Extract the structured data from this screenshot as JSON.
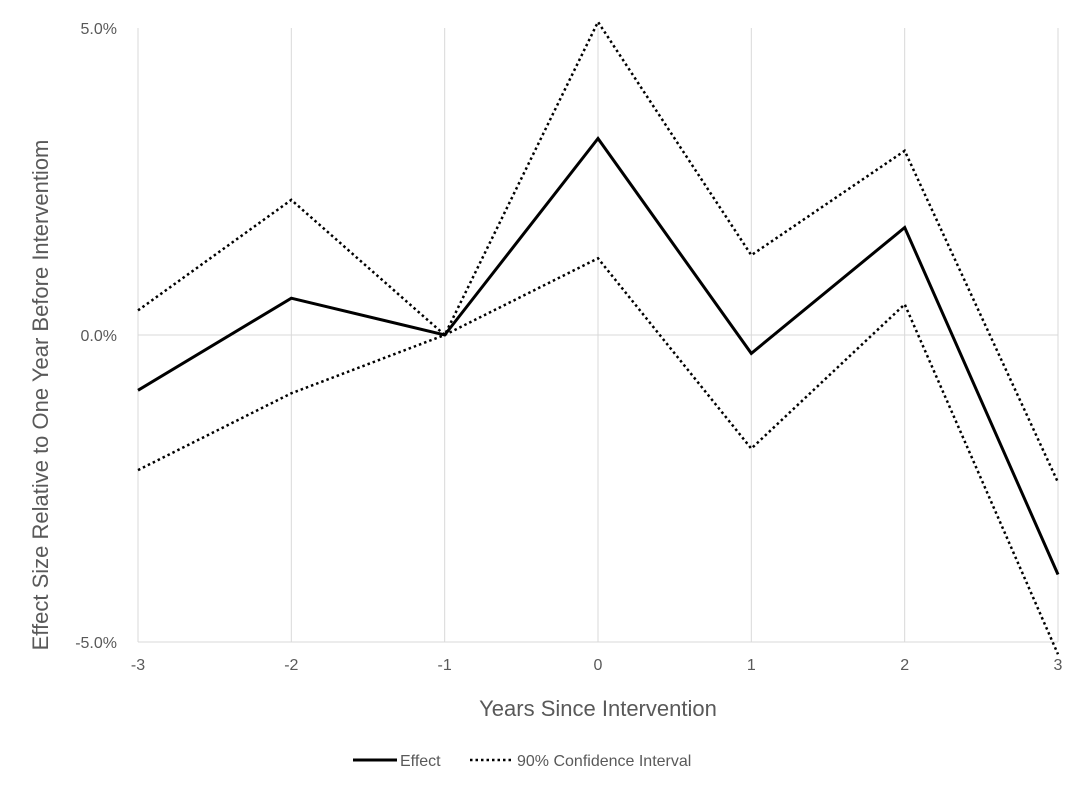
{
  "chart_data": {
    "type": "line",
    "xlabel": "Years Since Intervention",
    "ylabel": "Effect Size Relative to One Year Before Interventiom",
    "x": [
      -3,
      -2,
      -1,
      0,
      1,
      2,
      3
    ],
    "x_tick_labels": [
      "-3",
      "-2",
      "-1",
      "0",
      "1",
      "2",
      "3"
    ],
    "ylim": [
      -5,
      5
    ],
    "y_ticks": [
      5,
      0,
      -5
    ],
    "y_tick_labels": [
      "5.0%",
      "0.0%",
      "-5.0%"
    ],
    "grid": "vertical gridlines and zero line",
    "legend_position": "bottom",
    "series": [
      {
        "name": "Effect",
        "style": "solid",
        "color": "#000000",
        "values": [
          -0.9,
          0.6,
          0.0,
          3.2,
          -0.3,
          1.75,
          -3.9
        ]
      },
      {
        "name": "90% Confidence Interval",
        "style": "dotted",
        "color": "#000000",
        "values": [
          0.4,
          2.2,
          0.0,
          5.1,
          1.3,
          3.0,
          -2.4
        ]
      },
      {
        "name": "",
        "style": "dotted",
        "color": "#000000",
        "values": [
          -2.2,
          -0.95,
          0.0,
          1.25,
          -1.85,
          0.5,
          -5.2
        ]
      }
    ],
    "colors": {
      "grid": "#d9d9d9",
      "text": "#595959",
      "line": "#000000"
    }
  }
}
